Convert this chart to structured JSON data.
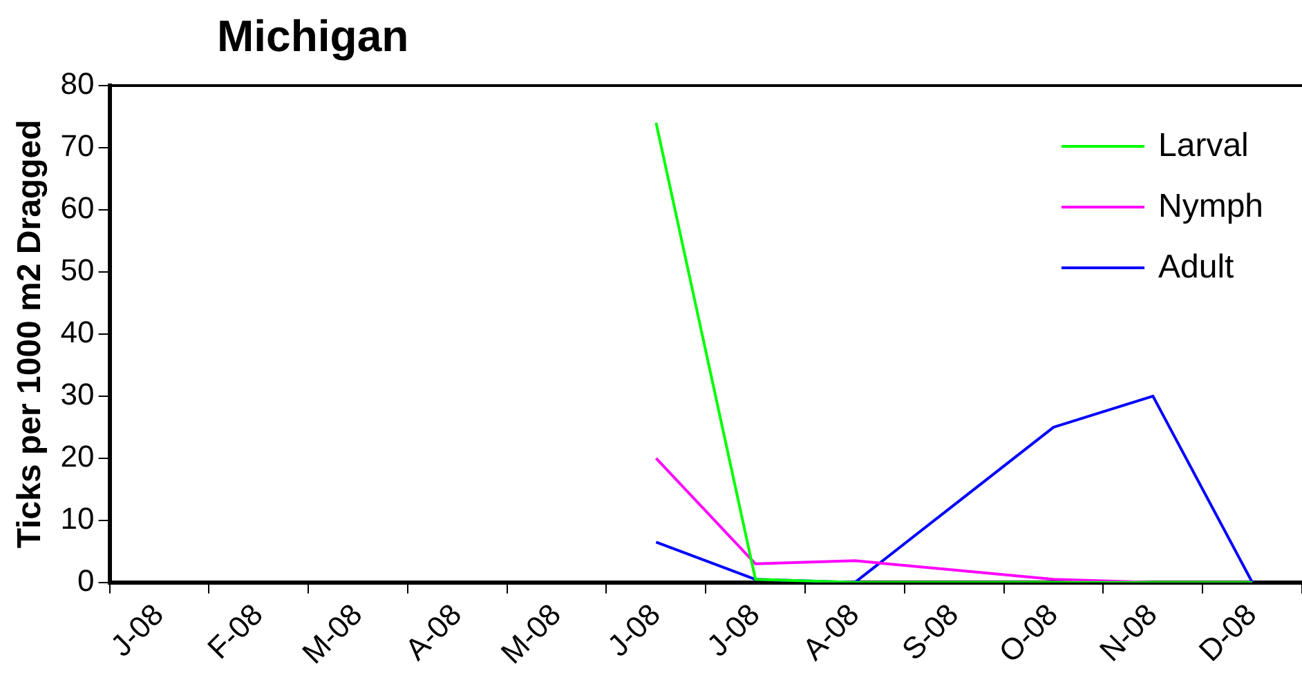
{
  "chart_data": {
    "type": "line",
    "title": "Michigan",
    "ylabel": "Ticks per 1000 m2 Dragged",
    "categories": [
      "J-08",
      "F-08",
      "M-08",
      "A-08",
      "M-08",
      "J-08",
      "J-08",
      "A-08",
      "S-08",
      "O-08",
      "N-08",
      "D-08"
    ],
    "series": [
      {
        "name": "Larval",
        "color": "#00ff00",
        "values": [
          null,
          null,
          null,
          null,
          null,
          74,
          0.5,
          0,
          0,
          0,
          0,
          0
        ]
      },
      {
        "name": "Nymph",
        "color": "#ff00ff",
        "values": [
          null,
          null,
          null,
          null,
          null,
          20,
          3,
          3.5,
          2,
          0.5,
          0,
          0
        ]
      },
      {
        "name": "Adult",
        "color": "#0000ff",
        "values": [
          null,
          null,
          null,
          null,
          null,
          6.5,
          0.5,
          0,
          12.5,
          25,
          30,
          0
        ]
      }
    ],
    "ylim": [
      0,
      80
    ],
    "yticks": [
      0,
      10,
      20,
      30,
      40,
      50,
      60,
      70,
      80
    ],
    "grid": false,
    "legend": "top right",
    "marker": "none",
    "line_style": "solid"
  }
}
